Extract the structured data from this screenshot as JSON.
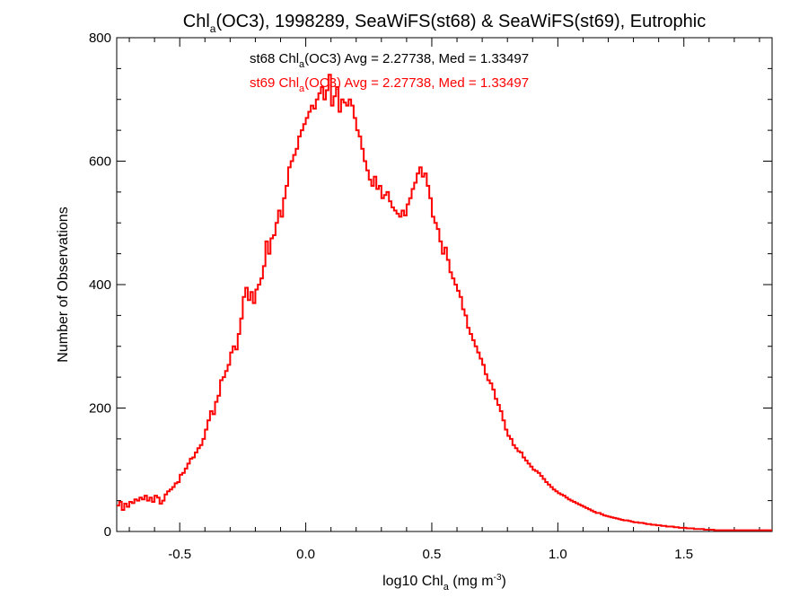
{
  "colors": {
    "st68": "#000000",
    "st69": "#ff0000",
    "axis": "#000000"
  },
  "chart_data": {
    "type": "line",
    "title": {
      "main": "Chl",
      "sub": "a",
      "rest": "(OC3), 1998289, SeaWiFS(st68) & SeaWiFS(st69), Eutrophic"
    },
    "xlabel": {
      "main": "log10 Chl",
      "sub": "a",
      "rest": " (mg m",
      "sup": "-3",
      "end": ")"
    },
    "ylabel": "Number of Observations",
    "xlim": [
      -0.75,
      1.85
    ],
    "ylim": [
      0,
      800
    ],
    "xticks": [
      -0.5,
      0.0,
      0.5,
      1.0,
      1.5
    ],
    "xtick_labels": [
      "-0.5",
      "0.0",
      "0.5",
      "1.0",
      "1.5"
    ],
    "yticks": [
      0,
      200,
      400,
      600,
      800
    ],
    "ytick_labels": [
      "0",
      "200",
      "400",
      "600",
      "800"
    ],
    "annotations": [
      {
        "series": "st68",
        "pre": "st68 Chl",
        "sub": "a",
        "post": "(OC3) Avg = 2.27738, Med = 1.33497"
      },
      {
        "series": "st69",
        "pre": "st69 Chl",
        "sub": "a",
        "post": "(OC3) Avg = 2.27738, Med = 1.33497"
      }
    ],
    "step": "histogram",
    "bin_width": 0.01,
    "x_start": -0.75,
    "series": [
      {
        "color": "#ff0000",
        "values": [
          42,
          48,
          35,
          45,
          40,
          48,
          46,
          52,
          50,
          55,
          52,
          58,
          50,
          55,
          48,
          58,
          55,
          45,
          50,
          60,
          65,
          68,
          72,
          78,
          80,
          92,
          95,
          102,
          110,
          118,
          120,
          128,
          135,
          140,
          150,
          165,
          180,
          195,
          190,
          210,
          220,
          245,
          250,
          260,
          270,
          290,
          300,
          295,
          320,
          345,
          380,
          395,
          375,
          388,
          370,
          392,
          400,
          410,
          430,
          470,
          450,
          475,
          480,
          500,
          520,
          510,
          540,
          560,
          590,
          600,
          610,
          620,
          640,
          650,
          660,
          670,
          680,
          690,
          685,
          700,
          710,
          720,
          700,
          715,
          740,
          690,
          705,
          720,
          680,
          700,
          695,
          690,
          700,
          690,
          670,
          650,
          640,
          620,
          600,
          585,
          570,
          560,
          575,
          555,
          560,
          540,
          545,
          550,
          535,
          525,
          520,
          515,
          510,
          520,
          512,
          530,
          540,
          555,
          565,
          580,
          590,
          575,
          580,
          560,
          540,
          510,
          500,
          490,
          470,
          450,
          460,
          440,
          420,
          410,
          400,
          390,
          380,
          360,
          350,
          330,
          320,
          310,
          300,
          290,
          280,
          270,
          255,
          245,
          240,
          230,
          215,
          205,
          195,
          180,
          165,
          155,
          150,
          140,
          135,
          130,
          128,
          120,
          115,
          110,
          105,
          100,
          98,
          95,
          90,
          85,
          80,
          76,
          72,
          68,
          65,
          62,
          60,
          58,
          55,
          52,
          50,
          48,
          46,
          44,
          42,
          40,
          38,
          36,
          34,
          32,
          30,
          30,
          28,
          26,
          25,
          24,
          23,
          22,
          21,
          20,
          19,
          18,
          18,
          17,
          16,
          15,
          15,
          14,
          14,
          13,
          12,
          12,
          11,
          11,
          10,
          10,
          9,
          9,
          8,
          8,
          8,
          7,
          7,
          6,
          6,
          6,
          5,
          5,
          5,
          4,
          4,
          4,
          4,
          3,
          3,
          3,
          3,
          2,
          2,
          2,
          2,
          2,
          2,
          2,
          2,
          2,
          2,
          2,
          2,
          2,
          2,
          2,
          2,
          2,
          2,
          2,
          2,
          2,
          2,
          2,
          2,
          2,
          2,
          2,
          2,
          2,
          2,
          2,
          2,
          2,
          2,
          2,
          2,
          2,
          2,
          2,
          2,
          2,
          2,
          2,
          2,
          2,
          2,
          2,
          2,
          2,
          2,
          2,
          2,
          2,
          2,
          2
        ]
      }
    ]
  }
}
